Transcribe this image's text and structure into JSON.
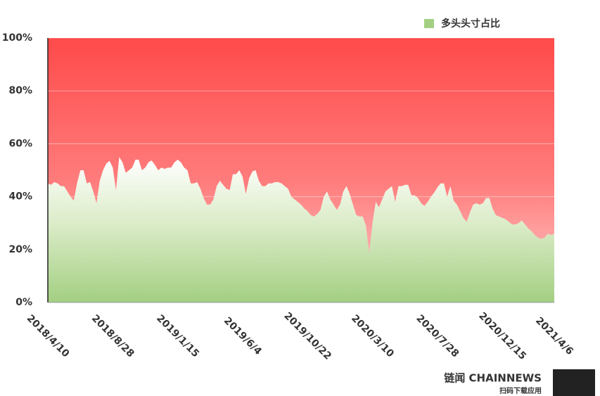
{
  "chart_data": {
    "type": "area",
    "legend": "top-right",
    "brand": "链闻 CHAINNEWS",
    "brand_caption": "扫码下载应用",
    "categories": [
      "2018/4/10",
      null,
      null,
      null,
      null,
      null,
      null,
      null,
      null,
      null,
      null,
      null,
      null,
      null,
      null,
      null,
      null,
      null,
      null,
      null,
      "2018/8/28",
      null,
      null,
      null,
      null,
      null,
      null,
      null,
      null,
      null,
      null,
      null,
      null,
      null,
      null,
      null,
      null,
      null,
      null,
      null,
      "2019/1/15",
      null,
      null,
      null,
      null,
      null,
      null,
      null,
      null,
      null,
      null,
      null,
      null,
      null,
      null,
      null,
      null,
      null,
      null,
      null,
      "2019/6/4",
      null,
      null,
      null,
      null,
      null,
      null,
      null,
      null,
      null,
      null,
      null,
      null,
      null,
      null,
      null,
      null,
      null,
      null,
      null,
      "2019/10/22",
      null,
      null,
      null,
      null,
      null,
      null,
      null,
      null,
      null,
      null,
      null,
      null,
      null,
      null,
      null,
      null,
      null,
      null,
      null,
      "2020/3/10",
      null,
      null,
      null,
      null,
      null,
      null,
      null,
      null,
      null,
      null,
      null,
      null,
      null,
      null,
      null,
      null,
      null,
      null,
      null,
      "2020/7/28",
      null,
      null,
      null,
      null,
      null,
      null,
      null,
      null,
      null,
      null,
      null,
      null,
      null,
      null,
      null,
      null,
      null,
      null,
      null,
      "2020/12/15",
      null,
      null,
      null,
      null,
      null,
      null,
      null,
      null,
      null,
      null,
      null,
      null,
      null,
      null,
      null,
      "2021/4/6"
    ],
    "series": [
      {
        "name": "多头头寸占比",
        "color": "#a3cf82",
        "values": [
          45,
          44.5,
          45.5,
          45,
          44,
          44,
          42,
          40,
          38.5,
          45,
          50,
          50,
          45,
          45.5,
          42,
          37.5,
          46,
          50,
          52.5,
          53.5,
          51,
          42.5,
          55,
          53,
          49,
          50,
          51,
          54,
          54,
          50,
          51,
          53,
          53.7,
          52,
          50,
          51,
          50.5,
          51,
          51,
          53,
          54,
          53,
          51,
          50,
          45,
          45,
          45.5,
          43,
          39.5,
          37,
          37,
          39,
          44,
          46,
          44.5,
          43,
          42.5,
          48.5,
          48.5,
          50,
          47.5,
          41,
          47,
          49.5,
          50,
          46,
          44,
          44,
          45,
          45,
          45.5,
          45.5,
          45,
          44,
          43,
          40,
          39,
          38,
          37,
          35.5,
          34.5,
          33,
          32.5,
          33.5,
          35,
          40,
          42,
          39,
          37,
          35,
          37,
          42,
          44,
          41,
          37,
          33,
          32.5,
          32.5,
          29,
          18.6,
          30,
          38,
          36,
          39,
          42,
          43,
          44,
          38,
          44,
          44,
          44.5,
          44.5,
          40.5,
          40.5,
          39.5,
          37.5,
          36.5,
          38,
          40,
          41.5,
          43.5,
          45,
          45,
          40,
          44,
          38.5,
          37,
          34.5,
          32,
          30.5,
          34,
          37,
          37.5,
          37,
          37.5,
          39.5,
          39.5,
          35.5,
          33,
          32.5,
          32,
          31.5,
          30.5,
          29.5,
          29.5,
          30,
          31,
          29.5,
          28,
          27,
          25.5,
          24.5,
          24,
          24.5,
          26,
          25.5,
          26
        ]
      }
    ],
    "ylim": [
      0,
      100
    ],
    "yticks": [
      {
        "value": 0,
        "label": "0%"
      },
      {
        "value": 20,
        "label": "20%"
      },
      {
        "value": 40,
        "label": "40%"
      },
      {
        "value": 60,
        "label": "60%"
      },
      {
        "value": 80,
        "label": "80%"
      },
      {
        "value": 100,
        "label": "100%"
      }
    ],
    "grid": true
  }
}
